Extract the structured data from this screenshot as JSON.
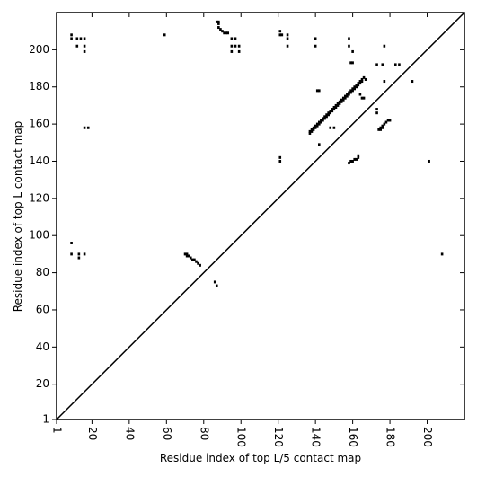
{
  "chart_data": {
    "type": "scatter",
    "x_label": "Residue index of top L/5 contact map",
    "y_label": "Residue index of top L contact map",
    "color": "#000000",
    "xlim": [
      1,
      220
    ],
    "ylim": [
      1,
      220
    ],
    "xticks": [
      1,
      20,
      40,
      60,
      80,
      100,
      120,
      140,
      160,
      180,
      200
    ],
    "yticks": [
      1,
      20,
      40,
      60,
      80,
      100,
      120,
      140,
      160,
      180,
      200
    ],
    "x": [
      9,
      9,
      12,
      14,
      16,
      12,
      16,
      16,
      59,
      87,
      88,
      88,
      88,
      89,
      90,
      91,
      92,
      93,
      95,
      97,
      95,
      97,
      95,
      99,
      99,
      121,
      121,
      122,
      125,
      125,
      125,
      140,
      140,
      158,
      158,
      160,
      159,
      160,
      177,
      173,
      176,
      183,
      185,
      192,
      177,
      166,
      167,
      141,
      142,
      142,
      148,
      150,
      165,
      166,
      164,
      173,
      173,
      174,
      175,
      176,
      177,
      178,
      179,
      180,
      175,
      176,
      158,
      159,
      160,
      161,
      162,
      163,
      163,
      121,
      121,
      9,
      9,
      13,
      13,
      16,
      16,
      18,
      70,
      71,
      71,
      72,
      73,
      74,
      75,
      76,
      77,
      78,
      86,
      87,
      201,
      208,
      137,
      138,
      139,
      140,
      141,
      142,
      143,
      144,
      145,
      146,
      147,
      148,
      149,
      150,
      151,
      152,
      153,
      154,
      155,
      156,
      157,
      158,
      159,
      160,
      161,
      162,
      163,
      164,
      165,
      137,
      138,
      139,
      140,
      141,
      142,
      143,
      144,
      145,
      146,
      147,
      148,
      149,
      150,
      151,
      152,
      153,
      154,
      155,
      156,
      157,
      158,
      159,
      160,
      161,
      162,
      163,
      164,
      165
    ],
    "values": [
      208,
      206,
      206,
      206,
      206,
      202,
      202,
      199,
      208,
      215,
      215,
      214,
      212,
      211,
      210,
      209,
      209,
      209,
      206,
      206,
      202,
      202,
      199,
      199,
      202,
      210,
      208,
      208,
      208,
      206,
      202,
      206,
      202,
      206,
      202,
      199,
      193,
      193,
      202,
      192,
      192,
      192,
      192,
      183,
      183,
      185,
      184,
      178,
      178,
      149,
      158,
      158,
      174,
      174,
      176,
      168,
      166,
      157,
      158,
      159,
      160,
      161,
      162,
      162,
      157,
      158,
      139,
      140,
      140,
      141,
      141,
      143,
      142,
      142,
      140,
      96,
      90,
      90,
      88,
      90,
      158,
      158,
      90,
      90,
      89,
      89,
      88,
      87,
      87,
      86,
      85,
      84,
      75,
      73,
      140,
      90,
      156,
      157,
      158,
      159,
      160,
      161,
      162,
      163,
      164,
      165,
      166,
      167,
      168,
      169,
      170,
      171,
      172,
      173,
      174,
      175,
      176,
      177,
      178,
      179,
      180,
      181,
      182,
      183,
      184,
      155,
      156,
      157,
      158,
      159,
      160,
      161,
      162,
      163,
      164,
      165,
      166,
      167,
      168,
      169,
      170,
      171,
      172,
      173,
      174,
      175,
      176,
      177,
      178,
      179,
      180,
      181,
      182,
      183
    ]
  }
}
